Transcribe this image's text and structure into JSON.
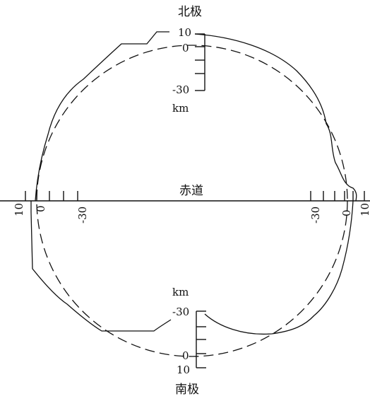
{
  "labels": {
    "north_pole": "北极",
    "south_pole": "南极",
    "equator": "赤道",
    "unit_top": "km",
    "unit_bottom": "km"
  },
  "scale_top": {
    "tick_10": "10",
    "tick_0": "0",
    "tick_neg30": "-30"
  },
  "scale_bottom": {
    "tick_neg30": "-30",
    "tick_0": "0",
    "tick_10": "10"
  },
  "scale_left": {
    "tick_10": "10",
    "tick_0": "0",
    "tick_neg30": "-30"
  },
  "scale_right": {
    "tick_neg30": "-30",
    "tick_0": "0",
    "tick_10": "10"
  },
  "colors": {
    "line": "#111111",
    "background": "#ffffff"
  }
}
